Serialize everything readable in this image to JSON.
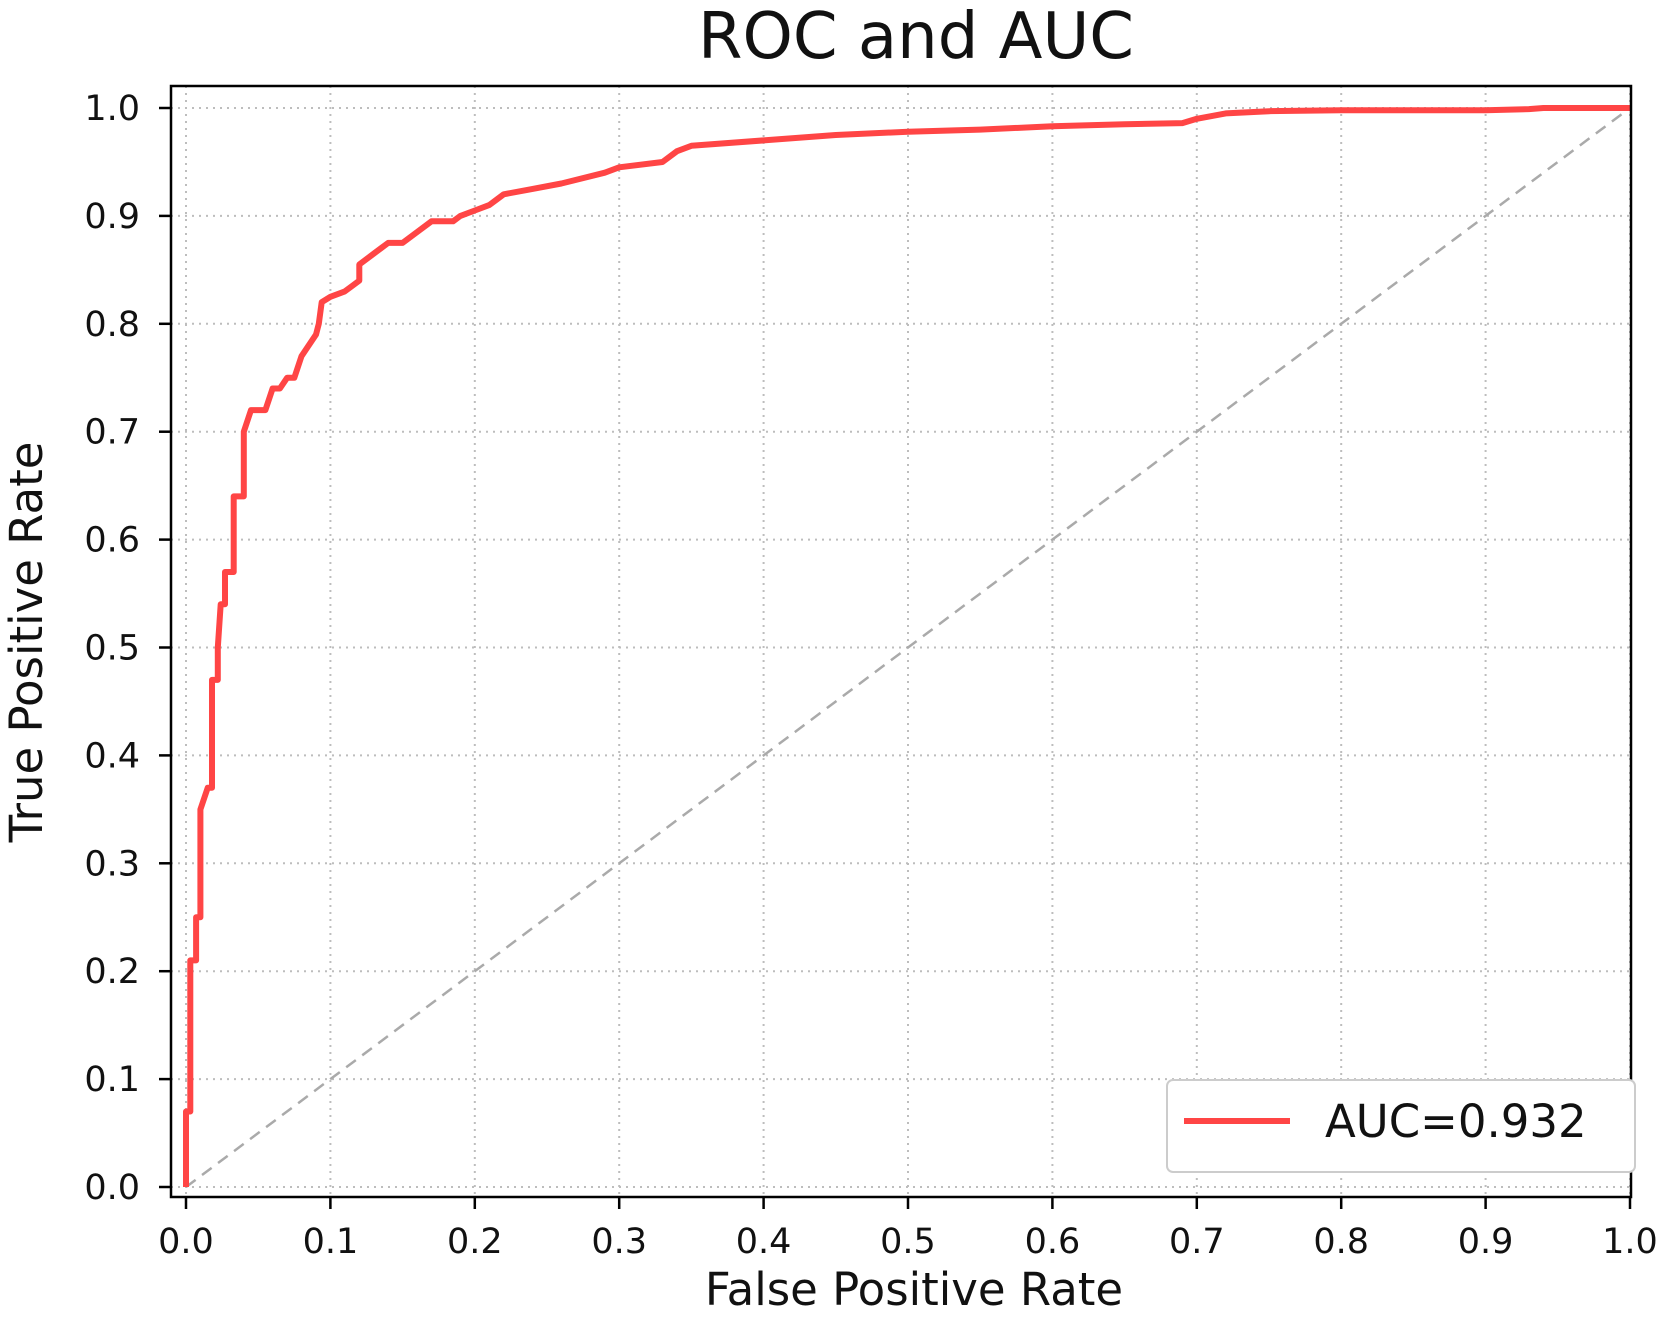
{
  "chart_data": {
    "type": "line",
    "title": "ROC and AUC",
    "xlabel": "False Positive Rate",
    "ylabel": "True Positive Rate",
    "xlim": [
      0.0,
      1.0
    ],
    "ylim": [
      0.0,
      1.0
    ],
    "x_ticks": [
      "0.0",
      "0.1",
      "0.2",
      "0.3",
      "0.4",
      "0.5",
      "0.6",
      "0.7",
      "0.8",
      "0.9",
      "1.0"
    ],
    "y_ticks": [
      "0.0",
      "0.1",
      "0.2",
      "0.3",
      "0.4",
      "0.5",
      "0.6",
      "0.7",
      "0.8",
      "0.9",
      "1.0"
    ],
    "grid": true,
    "legend_position": "bottom-right",
    "series": [
      {
        "name": "AUC=0.932",
        "color": "#ff4545",
        "style": "solid",
        "points": [
          [
            0.0,
            0.0
          ],
          [
            0.0,
            0.07
          ],
          [
            0.003,
            0.07
          ],
          [
            0.003,
            0.21
          ],
          [
            0.007,
            0.21
          ],
          [
            0.007,
            0.25
          ],
          [
            0.01,
            0.25
          ],
          [
            0.01,
            0.35
          ],
          [
            0.015,
            0.37
          ],
          [
            0.018,
            0.37
          ],
          [
            0.018,
            0.47
          ],
          [
            0.022,
            0.47
          ],
          [
            0.022,
            0.5
          ],
          [
            0.024,
            0.54
          ],
          [
            0.027,
            0.54
          ],
          [
            0.027,
            0.57
          ],
          [
            0.033,
            0.57
          ],
          [
            0.033,
            0.64
          ],
          [
            0.04,
            0.64
          ],
          [
            0.04,
            0.7
          ],
          [
            0.045,
            0.72
          ],
          [
            0.055,
            0.72
          ],
          [
            0.06,
            0.74
          ],
          [
            0.065,
            0.74
          ],
          [
            0.07,
            0.75
          ],
          [
            0.075,
            0.75
          ],
          [
            0.08,
            0.77
          ],
          [
            0.085,
            0.78
          ],
          [
            0.09,
            0.79
          ],
          [
            0.092,
            0.8
          ],
          [
            0.094,
            0.82
          ],
          [
            0.1,
            0.825
          ],
          [
            0.11,
            0.83
          ],
          [
            0.115,
            0.835
          ],
          [
            0.12,
            0.84
          ],
          [
            0.12,
            0.855
          ],
          [
            0.13,
            0.865
          ],
          [
            0.135,
            0.87
          ],
          [
            0.14,
            0.875
          ],
          [
            0.15,
            0.875
          ],
          [
            0.155,
            0.88
          ],
          [
            0.16,
            0.885
          ],
          [
            0.17,
            0.895
          ],
          [
            0.185,
            0.895
          ],
          [
            0.19,
            0.9
          ],
          [
            0.2,
            0.905
          ],
          [
            0.21,
            0.91
          ],
          [
            0.215,
            0.915
          ],
          [
            0.22,
            0.92
          ],
          [
            0.24,
            0.925
          ],
          [
            0.26,
            0.93
          ],
          [
            0.29,
            0.94
          ],
          [
            0.3,
            0.945
          ],
          [
            0.33,
            0.95
          ],
          [
            0.34,
            0.96
          ],
          [
            0.35,
            0.965
          ],
          [
            0.4,
            0.97
          ],
          [
            0.45,
            0.975
          ],
          [
            0.5,
            0.978
          ],
          [
            0.55,
            0.98
          ],
          [
            0.6,
            0.983
          ],
          [
            0.65,
            0.985
          ],
          [
            0.69,
            0.986
          ],
          [
            0.7,
            0.99
          ],
          [
            0.72,
            0.995
          ],
          [
            0.75,
            0.997
          ],
          [
            0.8,
            0.998
          ],
          [
            0.9,
            0.998
          ],
          [
            0.93,
            0.999
          ],
          [
            0.94,
            1.0
          ],
          [
            1.0,
            1.0
          ]
        ]
      },
      {
        "color": "#aaaaaa",
        "style": "dashed",
        "points": [
          [
            0.0,
            0.0
          ],
          [
            1.0,
            1.0
          ]
        ]
      }
    ]
  }
}
